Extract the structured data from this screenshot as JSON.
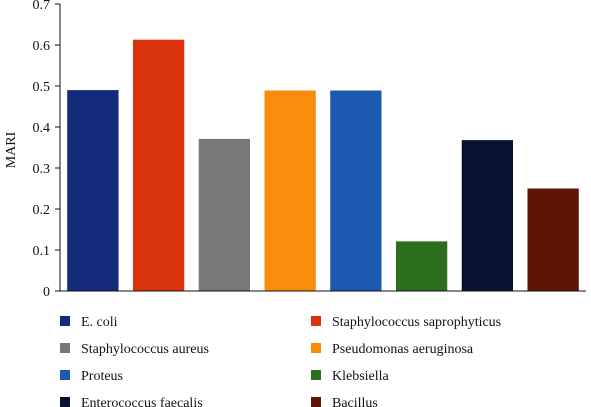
{
  "chart_data": {
    "type": "bar",
    "title": "",
    "xlabel": "",
    "ylabel": "MARI",
    "ylim": [
      0,
      0.7
    ],
    "yticks": [
      "0",
      "0.1",
      "0.2",
      "0.3",
      "0.4",
      "0.5",
      "0.6",
      "0.7"
    ],
    "grid": false,
    "legend_position": "bottom",
    "categories": [
      "E. coli",
      "Staphylococcus saprophyticus",
      "Staphylococcus aureus",
      "Pseudomonas aeruginosa",
      "Proteus",
      "Klebsiella",
      "Enterococcus faecalis",
      "Bacillus"
    ],
    "values": [
      0.49,
      0.613,
      0.371,
      0.489,
      0.489,
      0.121,
      0.368,
      0.25
    ],
    "colors": [
      "#142a7a",
      "#d9340e",
      "#76787a",
      "#f98c0a",
      "#1e59b1",
      "#2b6e1d",
      "#091132",
      "#5e1407"
    ]
  }
}
